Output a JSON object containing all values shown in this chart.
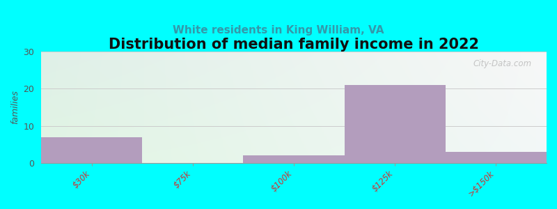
{
  "title": "Distribution of median family income in 2022",
  "subtitle": "White residents in King William, VA",
  "categories": [
    "$30k",
    "$75k",
    "$100k",
    "$125k",
    ">$150k"
  ],
  "values": [
    7,
    0,
    2,
    21,
    3
  ],
  "bar_color": "#b39dbd",
  "background_color": "#00ffff",
  "plot_bg_top_left": "#dff0e8",
  "plot_bg_top_right": "#f0f0f0",
  "plot_bg_bottom": "#e8f5e9",
  "ylabel": "families",
  "ylim": [
    0,
    30
  ],
  "yticks": [
    0,
    10,
    20,
    30
  ],
  "title_fontsize": 15,
  "subtitle_fontsize": 11,
  "subtitle_color": "#3399aa",
  "watermark": "City-Data.com",
  "tick_label_color": "#cc3333",
  "bar_width": 1.0,
  "n_bars": 5
}
